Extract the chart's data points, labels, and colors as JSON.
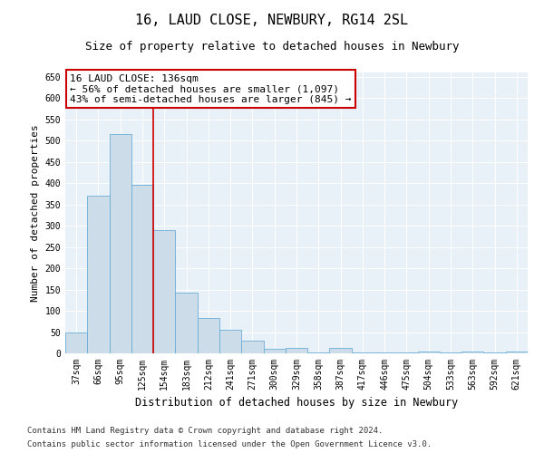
{
  "title": "16, LAUD CLOSE, NEWBURY, RG14 2SL",
  "subtitle": "Size of property relative to detached houses in Newbury",
  "xlabel": "Distribution of detached houses by size in Newbury",
  "ylabel": "Number of detached properties",
  "categories": [
    "37sqm",
    "66sqm",
    "95sqm",
    "125sqm",
    "154sqm",
    "183sqm",
    "212sqm",
    "241sqm",
    "271sqm",
    "300sqm",
    "329sqm",
    "358sqm",
    "387sqm",
    "417sqm",
    "446sqm",
    "475sqm",
    "504sqm",
    "533sqm",
    "563sqm",
    "592sqm",
    "621sqm"
  ],
  "values": [
    50,
    370,
    515,
    395,
    290,
    143,
    82,
    55,
    30,
    10,
    12,
    2,
    12,
    2,
    2,
    2,
    5,
    2,
    5,
    2,
    5
  ],
  "bar_color": "#ccdce8",
  "bar_edgecolor": "#6aaed6",
  "vline_x": 3.5,
  "vline_color": "#cc0000",
  "annotation_text": "16 LAUD CLOSE: 136sqm\n← 56% of detached houses are smaller (1,097)\n43% of semi-detached houses are larger (845) →",
  "annotation_box_facecolor": "#ffffff",
  "annotation_box_edgecolor": "#cc0000",
  "ylim": [
    0,
    660
  ],
  "yticks": [
    0,
    50,
    100,
    150,
    200,
    250,
    300,
    350,
    400,
    450,
    500,
    550,
    600,
    650
  ],
  "plot_bg_color": "#e8f0f8",
  "footer_line1": "Contains HM Land Registry data © Crown copyright and database right 2024.",
  "footer_line2": "Contains public sector information licensed under the Open Government Licence v3.0.",
  "title_fontsize": 11,
  "subtitle_fontsize": 9,
  "xlabel_fontsize": 8.5,
  "ylabel_fontsize": 8,
  "tick_fontsize": 7,
  "footer_fontsize": 6.5,
  "annotation_fontsize": 8
}
